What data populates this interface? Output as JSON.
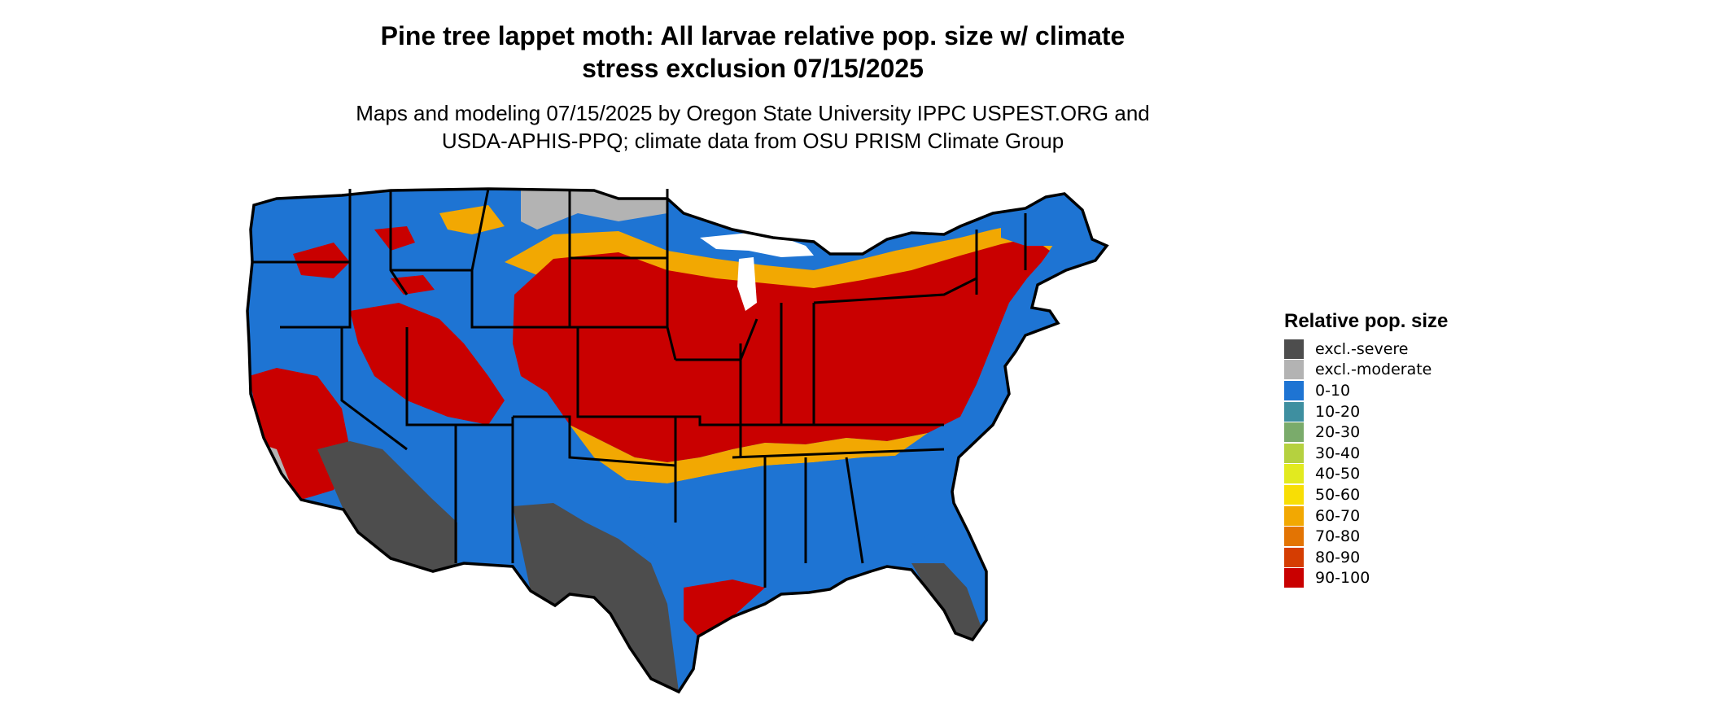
{
  "title": {
    "line1": "Pine tree lappet moth: All larvae relative pop. size w/ climate",
    "line2": "stress exclusion 07/15/2025"
  },
  "subtitle": {
    "line1": "Maps and modeling 07/15/2025 by Oregon State University IPPC USPEST.ORG and",
    "line2": "USDA-APHIS-PPQ; climate data from OSU PRISM Climate Group"
  },
  "legend": {
    "title": "Relative pop. size",
    "items": [
      {
        "label": "excl.-severe",
        "color": "#4d4d4d"
      },
      {
        "label": "excl.-moderate",
        "color": "#b3b3b3"
      },
      {
        "label": "0-10",
        "color": "#1e74d3"
      },
      {
        "label": "10-20",
        "color": "#3e8fa0"
      },
      {
        "label": "20-30",
        "color": "#7aab6b"
      },
      {
        "label": "30-40",
        "color": "#b5d13f"
      },
      {
        "label": "40-50",
        "color": "#e2ea1f"
      },
      {
        "label": "50-60",
        "color": "#f8de05"
      },
      {
        "label": "60-70",
        "color": "#f2a802"
      },
      {
        "label": "70-80",
        "color": "#e37403"
      },
      {
        "label": "80-90",
        "color": "#d53d02"
      },
      {
        "label": "90-100",
        "color": "#c90000"
      }
    ]
  },
  "map": {
    "region": "Contiguous United States",
    "colors": {
      "severe": "#4d4d4d",
      "moderate": "#b3b3b3",
      "low": "#1e74d3",
      "mid": "#f2a802",
      "high": "#c90000",
      "border": "#000000"
    }
  }
}
